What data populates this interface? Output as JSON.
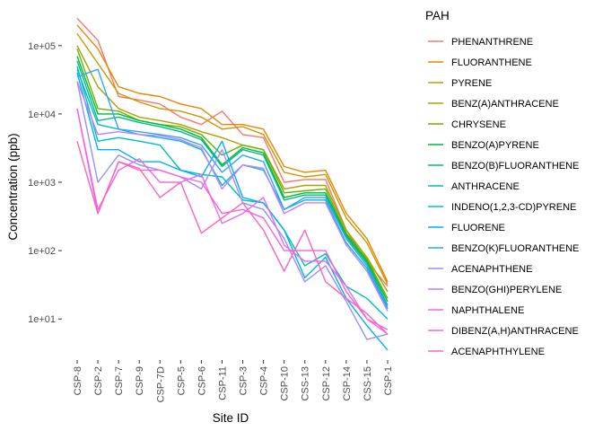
{
  "chart_data": {
    "type": "line",
    "title": "",
    "xlabel": "Site ID",
    "ylabel": "Concentration (ppb)",
    "yscale": "log",
    "ylim": [
      2.5,
      400000
    ],
    "yticks": [
      10,
      100,
      1000,
      10000,
      100000
    ],
    "ytick_labels": [
      "1e+01",
      "1e+02",
      "1e+03",
      "1e+04",
      "1e+05"
    ],
    "grid": false,
    "legend_title": "PAH",
    "legend_position": "right",
    "categories": [
      "CSP-8",
      "CSP-2",
      "CSP-7",
      "CSP-9",
      "CSP-7D",
      "CSP-5",
      "CSP-6",
      "CSP-11",
      "CSP-3",
      "CSP-4",
      "CSP-10",
      "CSS-13",
      "CSP-12",
      "CSP-14",
      "CSS-15",
      "CSP-1"
    ],
    "series": [
      {
        "name": "PHENANTHRENE",
        "color": "#F8766D",
        "values": [
          250000,
          120000,
          18000,
          16000,
          14000,
          9000,
          7000,
          11000,
          5000,
          4500,
          1000,
          1100,
          1100,
          200,
          70,
          30
        ]
      },
      {
        "name": "FLUORANTHENE",
        "color": "#E58700",
        "values": [
          200000,
          90000,
          25000,
          20000,
          18000,
          14000,
          12000,
          7000,
          7000,
          6000,
          1700,
          1400,
          1500,
          350,
          150,
          35
        ]
      },
      {
        "name": "PYRENE",
        "color": "#C99800",
        "values": [
          150000,
          55000,
          20000,
          15000,
          12000,
          11000,
          9000,
          6000,
          6500,
          5000,
          1400,
          1200,
          1300,
          300,
          130,
          32
        ]
      },
      {
        "name": "BENZ(A)ANTHRACENE",
        "color": "#A3A500",
        "values": [
          100000,
          25000,
          12000,
          9000,
          8000,
          7000,
          5500,
          4500,
          3500,
          3000,
          800,
          900,
          900,
          200,
          80,
          25
        ]
      },
      {
        "name": "CHRYSENE",
        "color": "#6BB100",
        "values": [
          90000,
          12000,
          11000,
          8000,
          7000,
          6500,
          5000,
          2500,
          3500,
          3000,
          700,
          750,
          800,
          180,
          75,
          20
        ]
      },
      {
        "name": "BENZO(A)PYRENE",
        "color": "#00BA38",
        "values": [
          70000,
          10000,
          10000,
          8000,
          7000,
          6000,
          4500,
          1800,
          3200,
          2700,
          600,
          700,
          700,
          170,
          70,
          18
        ]
      },
      {
        "name": "BENZO(B)FLUORANTHENE",
        "color": "#00BF7D",
        "values": [
          60000,
          8000,
          9000,
          7500,
          6500,
          5500,
          4200,
          1700,
          3000,
          2500,
          550,
          650,
          650,
          160,
          65,
          16
        ]
      },
      {
        "name": "ANTHRACENE",
        "color": "#00C0AF",
        "values": [
          50000,
          4000,
          4500,
          4000,
          3500,
          1500,
          1300,
          1200,
          550,
          500,
          200,
          60,
          90,
          30,
          20,
          10
        ]
      },
      {
        "name": "INDENO(1,2,3-CD)PYRENE",
        "color": "#00BCD8",
        "values": [
          45000,
          7000,
          6000,
          5000,
          4500,
          4000,
          3000,
          900,
          1800,
          1500,
          400,
          550,
          550,
          130,
          55,
          14
        ]
      },
      {
        "name": "FLUORENE",
        "color": "#00B0F6",
        "values": [
          40000,
          3000,
          3000,
          2000,
          2000,
          1500,
          1200,
          4000,
          600,
          500,
          200,
          40,
          80,
          20,
          8,
          3.5
        ]
      },
      {
        "name": "BENZO(K)FLUORANTHENE",
        "color": "#35A2FF",
        "values": [
          35000,
          45000,
          6000,
          5500,
          5000,
          4500,
          3500,
          1400,
          2500,
          2000,
          400,
          600,
          600,
          150,
          60,
          15
        ]
      },
      {
        "name": "ACENAPHTHENE",
        "color": "#9590FF",
        "values": [
          30000,
          1000,
          2500,
          1800,
          1500,
          1200,
          800,
          3000,
          500,
          400,
          150,
          35,
          60,
          18,
          5,
          6
        ]
      },
      {
        "name": "BENZO(GHI)PERYLENE",
        "color": "#C77CFF",
        "values": [
          30000,
          5000,
          5500,
          5000,
          4800,
          4200,
          3200,
          800,
          1800,
          1600,
          350,
          500,
          500,
          120,
          50,
          13
        ]
      },
      {
        "name": "NAPHTHALENE",
        "color": "#E76BF3",
        "values": [
          12000,
          400,
          1500,
          2200,
          1000,
          1000,
          1300,
          250,
          350,
          600,
          120,
          70,
          70,
          30,
          10,
          6
        ]
      },
      {
        "name": "DIBENZ(A,H)ANTHRACENE",
        "color": "#FA62DB",
        "values": [
          12000,
          350,
          2000,
          1500,
          1500,
          1200,
          1000,
          350,
          400,
          300,
          100,
          100,
          100,
          25,
          10,
          7
        ]
      },
      {
        "name": "ACENAPHTHYLENE",
        "color": "#FF62BC",
        "values": [
          4000,
          350,
          2000,
          1600,
          600,
          1000,
          180,
          300,
          500,
          200,
          50,
          200,
          35,
          20,
          12,
          6
        ]
      }
    ]
  }
}
